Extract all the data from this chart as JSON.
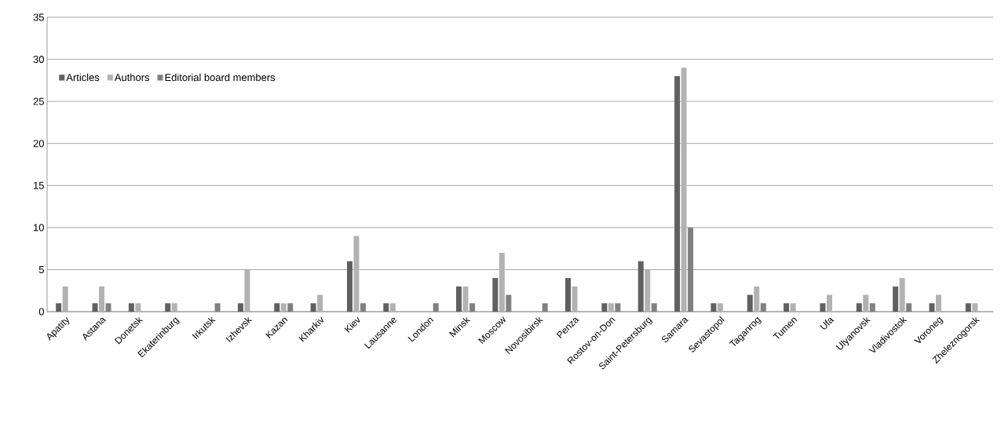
{
  "chart_data": {
    "type": "bar",
    "categories": [
      "Apatity",
      "Astana",
      "Donetsk",
      "Ekaterinburg",
      "Irkutsk",
      "Izhevsk",
      "Kazan",
      "Kharkiv",
      "Kiev",
      "Lausanne",
      "London",
      "Minsk",
      "Moscow",
      "Novosibirsk",
      "Penza",
      "Rostov-on-Don",
      "Saint-Petersburg",
      "Samara",
      "Sevastopol",
      "Taganrog",
      "Tumen",
      "Ufa",
      "Ulyanovsk",
      "Vladivostok",
      "Voroneg",
      "Zheleznogorsk"
    ],
    "series": [
      {
        "name": "Articles",
        "color": "#606060",
        "values": [
          1,
          1,
          1,
          1,
          0,
          1,
          1,
          1,
          6,
          1,
          0,
          3,
          4,
          0,
          4,
          1,
          6,
          28,
          1,
          2,
          1,
          1,
          1,
          3,
          1,
          1
        ]
      },
      {
        "name": "Authors",
        "color": "#b2b2b2",
        "values": [
          3,
          3,
          1,
          1,
          0,
          5,
          1,
          2,
          9,
          1,
          0,
          3,
          7,
          0,
          3,
          1,
          5,
          29,
          1,
          3,
          1,
          2,
          2,
          4,
          2,
          1
        ]
      },
      {
        "name": "Editorial board members",
        "color": "#808080",
        "values": [
          0,
          1,
          0,
          0,
          1,
          0,
          1,
          0,
          1,
          0,
          1,
          1,
          2,
          1,
          0,
          1,
          1,
          10,
          0,
          1,
          0,
          0,
          1,
          1,
          0,
          0
        ]
      }
    ],
    "ylim": [
      0,
      35
    ],
    "yticks": [
      0,
      5,
      10,
      15,
      20,
      25,
      30,
      35
    ],
    "grid": "y",
    "legend": "top left"
  }
}
